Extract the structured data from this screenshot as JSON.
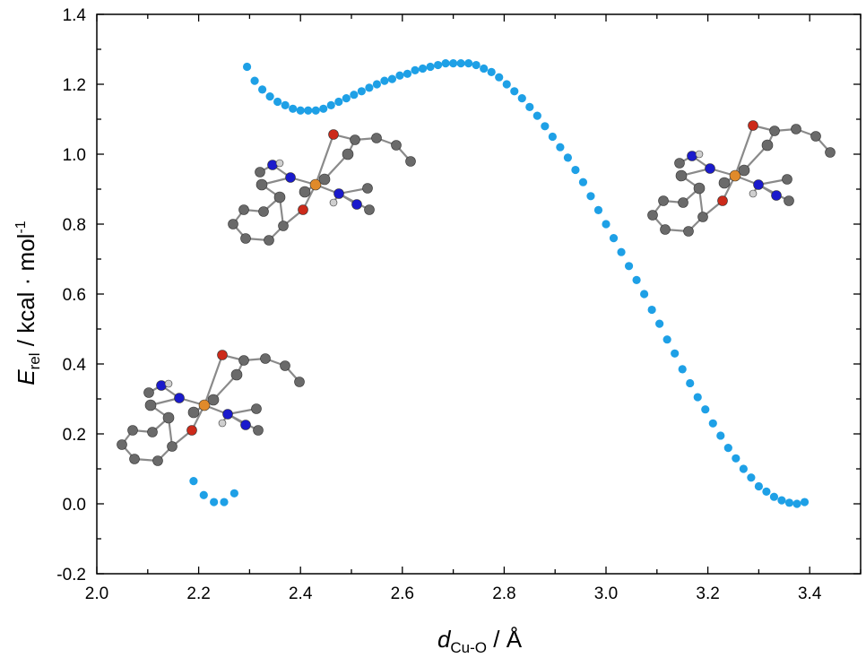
{
  "chart_data": {
    "type": "scatter",
    "title": "",
    "xlabel": {
      "symbol": "d",
      "subscript": "Cu-O",
      "unit": " / Å"
    },
    "ylabel": {
      "symbol": "E",
      "subscript": "rel",
      "unit_prefix": " / kcal · mol",
      "superscript": "-1"
    },
    "xlim": [
      2.0,
      3.5
    ],
    "ylim": [
      -0.2,
      1.4
    ],
    "x_ticks": [
      "2.0",
      "2.2",
      "2.4",
      "2.6",
      "2.8",
      "3.0",
      "3.2",
      "3.4"
    ],
    "y_ticks": [
      "-0.2",
      "0.0",
      "0.2",
      "0.4",
      "0.6",
      "0.8",
      "1.0",
      "1.2",
      "1.4"
    ],
    "grid": false,
    "marker_color": "#1ea0e6",
    "series": [
      {
        "points": [
          [
            2.19,
            0.065
          ],
          [
            2.21,
            0.025
          ],
          [
            2.23,
            0.005
          ],
          [
            2.25,
            0.005
          ],
          [
            2.27,
            0.03
          ]
        ]
      },
      {
        "points": [
          [
            2.295,
            1.25
          ],
          [
            2.31,
            1.21
          ],
          [
            2.325,
            1.185
          ],
          [
            2.34,
            1.165
          ],
          [
            2.355,
            1.15
          ],
          [
            2.37,
            1.14
          ],
          [
            2.385,
            1.13
          ],
          [
            2.4,
            1.125
          ],
          [
            2.415,
            1.125
          ],
          [
            2.43,
            1.125
          ],
          [
            2.445,
            1.13
          ],
          [
            2.46,
            1.14
          ],
          [
            2.475,
            1.15
          ],
          [
            2.49,
            1.16
          ],
          [
            2.505,
            1.17
          ],
          [
            2.52,
            1.18
          ],
          [
            2.535,
            1.19
          ],
          [
            2.55,
            1.2
          ],
          [
            2.565,
            1.21
          ],
          [
            2.58,
            1.215
          ],
          [
            2.595,
            1.225
          ],
          [
            2.61,
            1.23
          ],
          [
            2.625,
            1.24
          ],
          [
            2.64,
            1.245
          ],
          [
            2.655,
            1.25
          ],
          [
            2.67,
            1.255
          ],
          [
            2.685,
            1.26
          ],
          [
            2.7,
            1.26
          ],
          [
            2.715,
            1.26
          ],
          [
            2.73,
            1.26
          ],
          [
            2.745,
            1.255
          ],
          [
            2.76,
            1.245
          ],
          [
            2.775,
            1.235
          ],
          [
            2.79,
            1.22
          ],
          [
            2.805,
            1.2
          ],
          [
            2.82,
            1.18
          ],
          [
            2.835,
            1.16
          ],
          [
            2.85,
            1.135
          ],
          [
            2.865,
            1.11
          ],
          [
            2.88,
            1.08
          ],
          [
            2.895,
            1.05
          ],
          [
            2.91,
            1.02
          ],
          [
            2.925,
            0.99
          ],
          [
            2.94,
            0.955
          ],
          [
            2.955,
            0.92
          ],
          [
            2.97,
            0.88
          ],
          [
            2.985,
            0.84
          ],
          [
            3.0,
            0.8
          ],
          [
            3.015,
            0.76
          ],
          [
            3.03,
            0.72
          ],
          [
            3.045,
            0.68
          ],
          [
            3.06,
            0.64
          ],
          [
            3.075,
            0.6
          ],
          [
            3.09,
            0.555
          ],
          [
            3.105,
            0.515
          ],
          [
            3.12,
            0.47
          ],
          [
            3.135,
            0.43
          ],
          [
            3.15,
            0.385
          ],
          [
            3.165,
            0.345
          ],
          [
            3.18,
            0.305
          ],
          [
            3.195,
            0.27
          ],
          [
            3.21,
            0.23
          ],
          [
            3.225,
            0.195
          ],
          [
            3.24,
            0.16
          ],
          [
            3.255,
            0.13
          ],
          [
            3.27,
            0.1
          ],
          [
            3.285,
            0.075
          ],
          [
            3.3,
            0.05
          ],
          [
            3.315,
            0.035
          ],
          [
            3.33,
            0.02
          ],
          [
            3.345,
            0.01
          ],
          [
            3.36,
            0.003
          ],
          [
            3.375,
            0.0
          ],
          [
            3.39,
            0.005
          ]
        ]
      }
    ]
  }
}
